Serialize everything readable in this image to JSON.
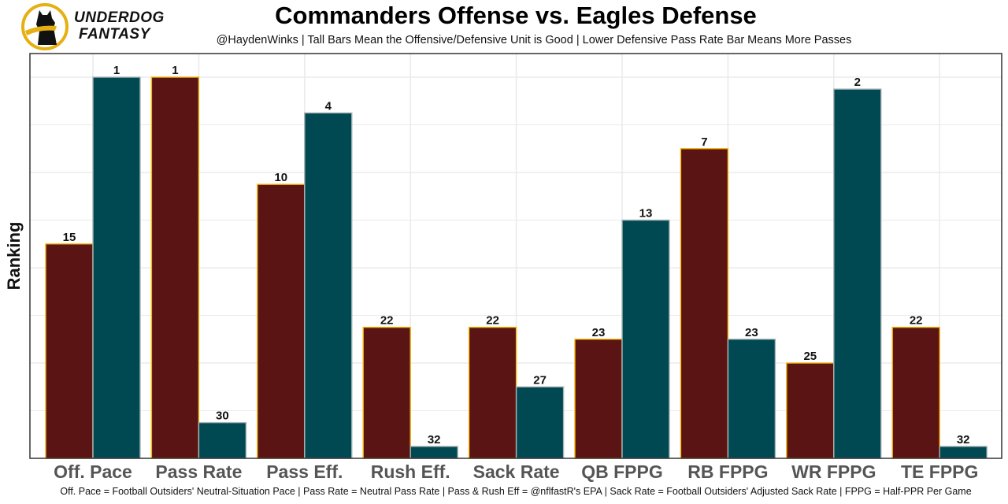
{
  "brand": {
    "line1": "UNDERDOG",
    "line2": "FANTASY",
    "logo_icon": "underdog-dog-logo-icon"
  },
  "colors": {
    "offense": "#5a1414",
    "offense_border": "#f5b50a",
    "defense": "#004952",
    "defense_border": "#a9b4b6",
    "grid": "#ebebeb",
    "axis": "#333333"
  },
  "chart_data": {
    "type": "bar",
    "title": "Commanders Offense vs. Eagles Defense",
    "subtitle": "@HaydenWinks | Tall Bars Mean the Offensive/Defensive Unit is Good | Lower Defensive Pass Rate Bar Means More Passes",
    "xlabel": "",
    "ylabel": "Ranking",
    "caption": "Off. Pace = Football Outsiders' Neutral-Situation Pace | Pass Rate = Neutral Pass Rate | Pass & Rush Eff = @nflfastR's EPA | Sack Rate = Football Outsiders' Adjusted Sack Rate | FPPG = Half-PPR Per Game",
    "categories": [
      "Off. Pace",
      "Pass Rate",
      "Pass Eff.",
      "Rush Eff.",
      "Sack Rate",
      "QB FPPG",
      "RB FPPG",
      "WR FPPG",
      "TE FPPG"
    ],
    "series": [
      {
        "name": "Commanders Offense",
        "values": [
          15,
          1,
          10,
          22,
          22,
          23,
          7,
          25,
          22
        ]
      },
      {
        "name": "Eagles Defense",
        "values": [
          1,
          30,
          4,
          32,
          27,
          13,
          23,
          2,
          32
        ]
      }
    ],
    "y_scale": "inverted rank (1 = tallest bar, 32 = shortest)",
    "rank_range": [
      1,
      32
    ],
    "grid": true,
    "legend": "none"
  }
}
